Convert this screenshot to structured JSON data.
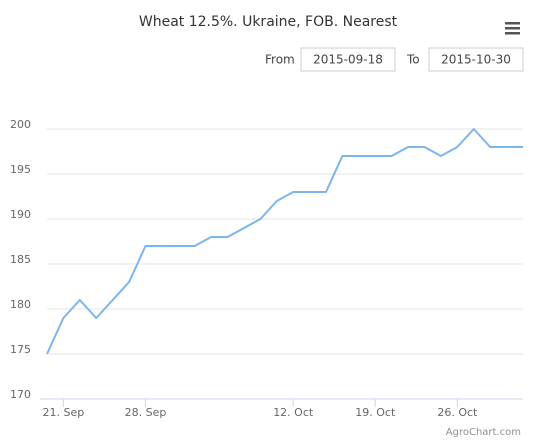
{
  "chart_data": {
    "type": "line",
    "title": "Wheat 12.5%. Ukraine, FOB. Nearest",
    "categories": [
      null,
      "21. Sep",
      null,
      null,
      null,
      null,
      "28. Sep",
      null,
      null,
      null,
      null,
      null,
      null,
      null,
      null,
      "12. Oct",
      null,
      null,
      null,
      null,
      "19. Oct",
      null,
      null,
      null,
      null,
      "26. Oct",
      null,
      null,
      null,
      null
    ],
    "series": [
      {
        "name": "Wheat 12.5%. Ukraine, FOB. Nearest",
        "color": "#7cb5ec",
        "values": [
          175,
          179,
          181,
          179,
          181,
          183,
          187,
          187,
          187,
          187,
          188,
          188,
          189,
          190,
          192,
          193,
          193,
          193,
          197,
          197,
          197,
          197,
          198,
          198,
          197,
          198,
          200,
          198,
          198,
          198
        ]
      }
    ],
    "ylim": [
      170,
      205
    ],
    "yticks": [
      170,
      175,
      180,
      185,
      190,
      195,
      200
    ],
    "grid": true,
    "range_selector": {
      "from_label": "From",
      "from": "2015-09-18",
      "to_label": "To",
      "to": "2015-10-30"
    },
    "credits": "AgroChart.com"
  }
}
